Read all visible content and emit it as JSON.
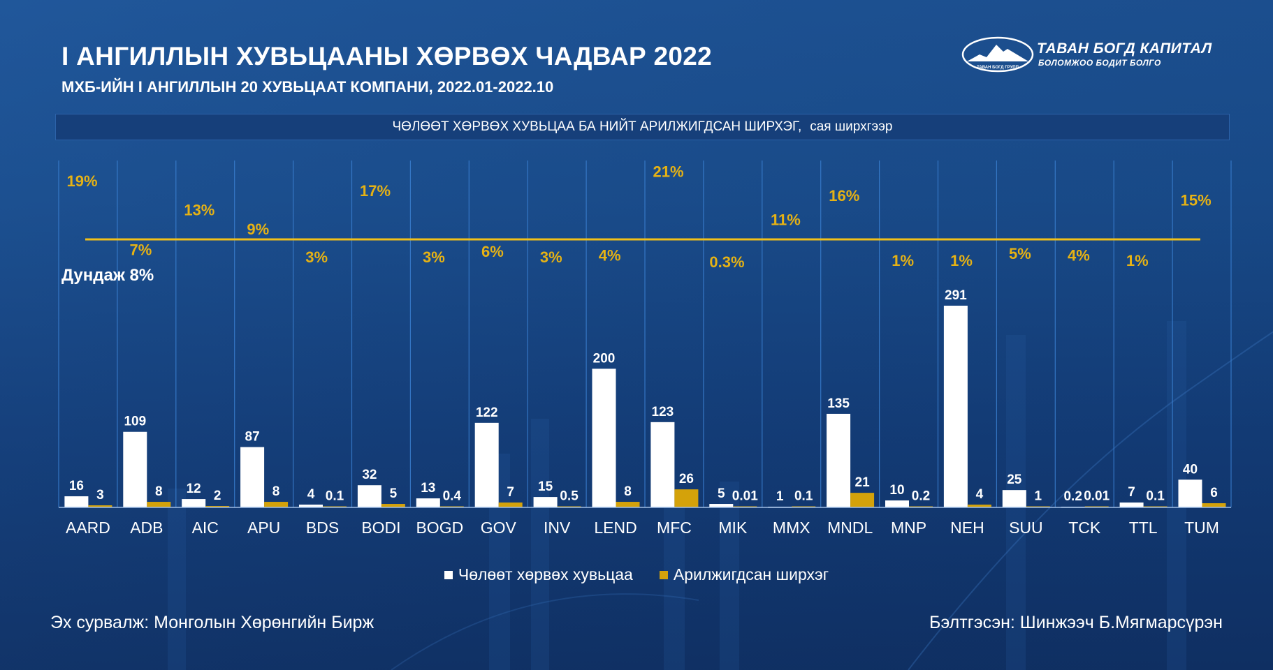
{
  "header": {
    "title": "I АНГИЛЛЫН ХУВЬЦААНЫ ХӨРВӨХ ЧАДВАР 2022",
    "subtitle": "МХБ-ИЙН I АНГИЛЛЫН 20 ХУВЬЦААТ КОМПАНИ, 2022.01-2022.10"
  },
  "logo": {
    "name": "ТАВАН БОГД КАПИТАЛ",
    "tagline": "БОЛОМЖОО БОДИТ БОЛГО",
    "emblem_text": "ТАВАН БОГД ГРУПП"
  },
  "banner": {
    "text": "ЧӨЛӨӨТ ХӨРВӨХ ХУВЬЦАА БА НИЙТ АРИЛЖИГДСАН ШИРХЭГ,",
    "unit": "сая ширхгээр"
  },
  "footer": {
    "source": "Эх сурвалж: Монголын Хөрөнгийн Бирж",
    "prepared_by": "Бэлтгэсэн: Шинжээч Б.Мягмарсүрэн"
  },
  "colors": {
    "free_float": "#ffffff",
    "traded": "#d4a20a",
    "percent_label": "#e6b214",
    "average_line": "#f2c019",
    "gridline": "#3a7fd0"
  },
  "chart_data": {
    "type": "bar",
    "title": "ЧӨЛӨӨТ ХӨРВӨХ ХУВЬЦАА БА НИЙТ АРИЛЖИГДСАН ШИРХЭГ, сая ширхгээр",
    "xlabel": "",
    "ylabel": "",
    "grid": true,
    "legend_position": "bottom",
    "categories": [
      "AARD",
      "ADB",
      "AIC",
      "APU",
      "BDS",
      "BODI",
      "BOGD",
      "GOV",
      "INV",
      "LEND",
      "MFC",
      "MIK",
      "MMX",
      "MNDL",
      "MNP",
      "NEH",
      "SUU",
      "TCK",
      "TTL",
      "TUM"
    ],
    "series": [
      {
        "name": "Чөлөөт хөрвөх хувьцаа",
        "values": [
          16,
          109,
          12,
          87,
          4,
          32,
          13,
          122,
          15,
          200,
          123,
          5,
          1,
          135,
          10,
          291,
          25,
          0.2,
          7,
          40
        ],
        "labels": [
          "16",
          "109",
          "12",
          "87",
          "4",
          "32",
          "13",
          "122",
          "15",
          "200",
          "123",
          "5",
          "1",
          "135",
          "10",
          "291",
          "25",
          "0.2",
          "7",
          "40"
        ]
      },
      {
        "name": "Арилжигдсан ширхэг",
        "values": [
          3,
          8,
          2,
          8,
          0.1,
          5,
          0.4,
          7,
          0.5,
          8,
          26,
          0.01,
          0.1,
          21,
          0.2,
          4,
          1,
          0.01,
          0.1,
          6
        ],
        "labels": [
          "3",
          "8",
          "2",
          "8",
          "0.1",
          "5",
          "0.4",
          "7",
          "0.5",
          "8",
          "26",
          "0.01",
          "0.1",
          "21",
          "0.2",
          "4",
          "1",
          "0.01",
          "0.1",
          "6"
        ]
      }
    ],
    "turnover_ratio_pct": {
      "values": [
        19,
        7,
        13,
        9,
        3,
        17,
        3,
        6,
        3,
        4,
        21,
        0.3,
        11,
        16,
        1,
        1,
        5,
        4,
        1,
        15
      ],
      "labels": [
        "19%",
        "7%",
        "13%",
        "9%",
        "3%",
        "17%",
        "3%",
        "6%",
        "3%",
        "4%",
        "21%",
        "0.3%",
        "11%",
        "16%",
        "1%",
        "1%",
        "5%",
        "4%",
        "1%",
        "15%"
      ]
    },
    "average": {
      "label": "Дундаж 8%",
      "value": 8
    },
    "ylim": [
      0,
      300
    ]
  }
}
